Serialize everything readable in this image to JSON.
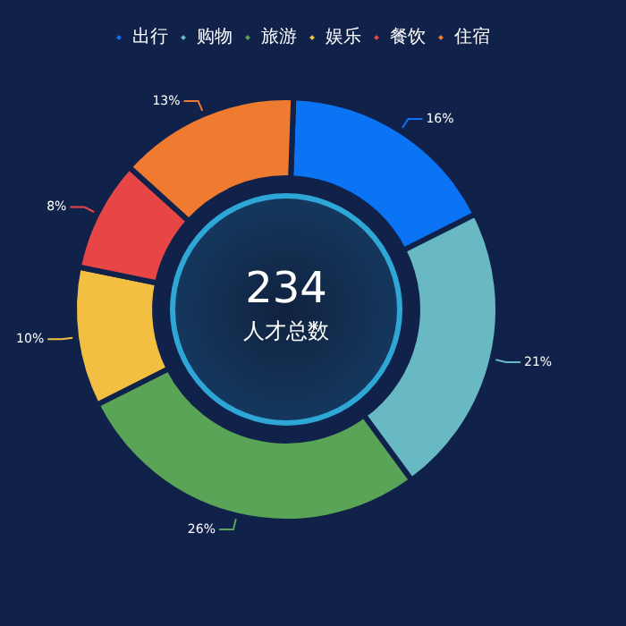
{
  "chart_data": {
    "type": "donut",
    "categories": [
      "出行",
      "购物",
      "旅游",
      "娱乐",
      "餐饮",
      "住宿"
    ],
    "values": [
      16,
      21,
      26,
      10,
      8,
      13
    ],
    "value_labels": [
      "16%",
      "21%",
      "26%",
      "10%",
      "8%",
      "13%"
    ],
    "colors": [
      "#0a74f5",
      "#68b9c4",
      "#5aa457",
      "#f2bf42",
      "#e84646",
      "#ee7b30"
    ],
    "legend": "top right",
    "annotations": [
      "234",
      "人才总数"
    ]
  }
}
